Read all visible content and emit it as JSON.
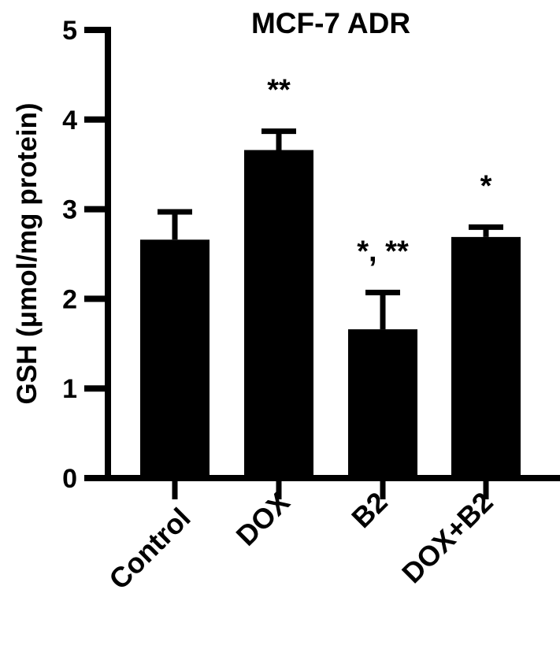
{
  "chart_data": {
    "type": "bar",
    "title": "MCF-7 ADR",
    "xlabel": "",
    "ylabel": "GSH (μmol/mg protein)",
    "ylim": [
      0,
      5
    ],
    "yticks": [
      "0",
      "1",
      "2",
      "3",
      "4",
      "5"
    ],
    "grid": false,
    "legend": null,
    "categories": [
      "Control",
      "DOX",
      "B2",
      "DOX+B2"
    ],
    "values": [
      2.66,
      3.66,
      1.66,
      2.69
    ],
    "error_upper": [
      0.31,
      0.21,
      0.41,
      0.11
    ],
    "annotations": [
      "",
      "**",
      "*, **",
      "*"
    ],
    "bar_color": "#000000"
  }
}
